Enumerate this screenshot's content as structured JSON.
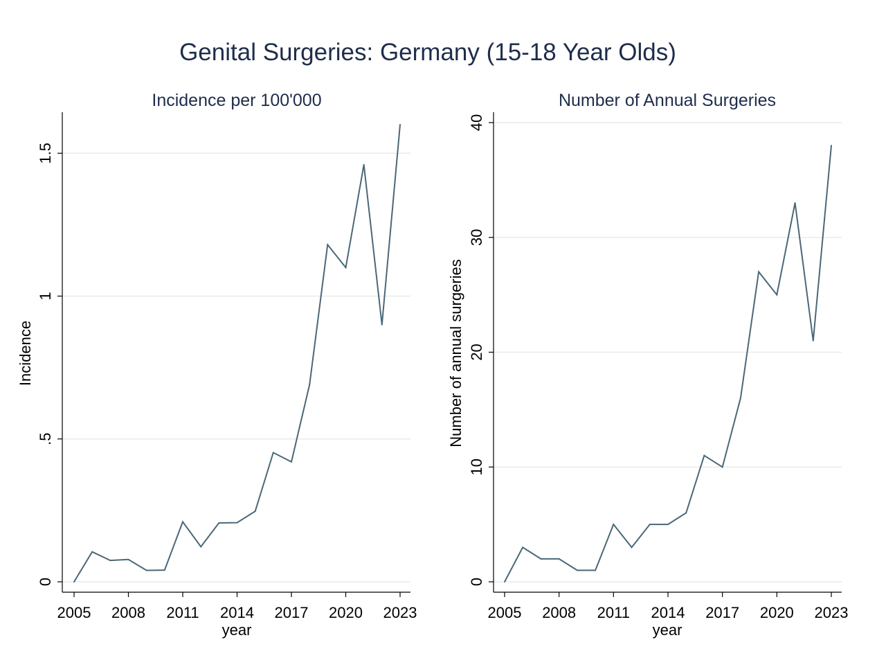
{
  "title": "Genital Surgeries: Germany (15-18 Year Olds)",
  "colors": {
    "line": "#4a6777",
    "grid": "#eaeaea",
    "title": "#1f2d4b"
  },
  "chart_data": [
    {
      "type": "line",
      "title": "Incidence per 100'000",
      "xlabel": "year",
      "ylabel": "Incidence",
      "xlim": [
        2005,
        2023
      ],
      "ylim": [
        0,
        1.6
      ],
      "xticks": [
        2005,
        2008,
        2011,
        2014,
        2017,
        2020,
        2023
      ],
      "xtick_labels": [
        "2005",
        "2008",
        "2011",
        "2014",
        "2017",
        "2020",
        "2023"
      ],
      "yticks": [
        0,
        0.5,
        1,
        1.5
      ],
      "ytick_labels": [
        "0",
        ".5",
        "1",
        "1.5"
      ],
      "grid": true,
      "x": [
        2005,
        2006,
        2007,
        2008,
        2009,
        2010,
        2011,
        2012,
        2013,
        2014,
        2015,
        2016,
        2017,
        2018,
        2019,
        2020,
        2021,
        2022,
        2023
      ],
      "values": [
        0,
        0.105,
        0.075,
        0.078,
        0.04,
        0.041,
        0.21,
        0.123,
        0.206,
        0.207,
        0.247,
        0.452,
        0.42,
        0.69,
        1.18,
        1.1,
        1.46,
        0.9,
        1.6
      ]
    },
    {
      "type": "line",
      "title": "Number of Annual Surgeries",
      "xlabel": "year",
      "ylabel": "Number of annual surgeries",
      "xlim": [
        2005,
        2023
      ],
      "ylim": [
        0,
        40
      ],
      "xticks": [
        2005,
        2008,
        2011,
        2014,
        2017,
        2020,
        2023
      ],
      "xtick_labels": [
        "2005",
        "2008",
        "2011",
        "2014",
        "2017",
        "2020",
        "2023"
      ],
      "yticks": [
        0,
        10,
        20,
        30,
        40
      ],
      "ytick_labels": [
        "0",
        "10",
        "20",
        "30",
        "40"
      ],
      "grid": true,
      "x": [
        2005,
        2006,
        2007,
        2008,
        2009,
        2010,
        2011,
        2012,
        2013,
        2014,
        2015,
        2016,
        2017,
        2018,
        2019,
        2020,
        2021,
        2022,
        2023
      ],
      "values": [
        0,
        3,
        2,
        2,
        1,
        1,
        5,
        3,
        5,
        5,
        6,
        11,
        10,
        16,
        27,
        25,
        33,
        21,
        38
      ]
    }
  ]
}
